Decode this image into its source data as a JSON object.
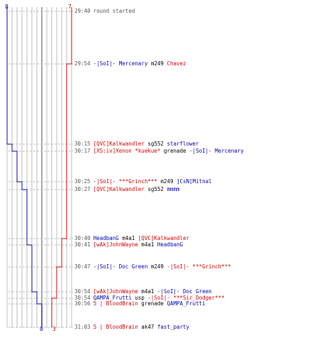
{
  "colors": {
    "blue": "#0000aa",
    "red": "#cc0000",
    "gray": "#555555",
    "grid": "#bbbbbb",
    "dash": "#bbbbbb"
  },
  "axis": {
    "blue_start": "8",
    "red_start": "7",
    "blue_end": "0",
    "red_end": "3"
  },
  "events": [
    {
      "time": "29:40",
      "parts": [
        {
          "t": "round started",
          "c": "gray"
        }
      ]
    },
    {
      "time": "29:54",
      "parts": [
        {
          "t": "-|SoI|- Mercenary",
          "c": "blue"
        },
        {
          "t": " m249 ",
          "c": "black"
        },
        {
          "t": "Chavez",
          "c": "red"
        }
      ]
    },
    {
      "time": "30:15",
      "parts": [
        {
          "t": "[QVC]Kalkwandler",
          "c": "red"
        },
        {
          "t": " sg552 ",
          "c": "black"
        },
        {
          "t": "starflower",
          "c": "blue"
        }
      ]
    },
    {
      "time": "30:17",
      "parts": [
        {
          "t": "[XS:iv]Xenon *kuekue*",
          "c": "red"
        },
        {
          "t": " grenade ",
          "c": "black"
        },
        {
          "t": "-|SoI|- Mercenary",
          "c": "blue"
        }
      ]
    },
    {
      "time": "30:25",
      "parts": [
        {
          "t": "-|SoI|- ***Grinch***",
          "c": "red"
        },
        {
          "t": " m249 ",
          "c": "black"
        },
        {
          "t": "]CsN[Mitnal",
          "c": "blue"
        }
      ]
    },
    {
      "time": "30:27",
      "parts": [
        {
          "t": "[QVC]Kalkwandler",
          "c": "red"
        },
        {
          "t": " sg552 ",
          "c": "black"
        },
        {
          "t": "mmmm",
          "c": "blue"
        }
      ]
    },
    {
      "time": "30:40",
      "parts": [
        {
          "t": "HeadbanG",
          "c": "blue"
        },
        {
          "t": " m4a1 ",
          "c": "black"
        },
        {
          "t": "[QVC]Kalkwandler",
          "c": "red"
        }
      ]
    },
    {
      "time": "30:41",
      "parts": [
        {
          "t": "[wAk]JohnWayne",
          "c": "red"
        },
        {
          "t": " m4a1 ",
          "c": "black"
        },
        {
          "t": "HeadbanG",
          "c": "blue"
        }
      ]
    },
    {
      "time": "30:47",
      "parts": [
        {
          "t": "-|SoI|- Doc Green",
          "c": "blue"
        },
        {
          "t": " m249 ",
          "c": "black"
        },
        {
          "t": "-|SoI|- ***Grinch***",
          "c": "red"
        }
      ]
    },
    {
      "time": "30:54",
      "parts": [
        {
          "t": "[wAk]JohnWayne",
          "c": "red"
        },
        {
          "t": " m4a1 ",
          "c": "black"
        },
        {
          "t": "-|SoI|- Doc Green",
          "c": "blue"
        }
      ]
    },
    {
      "time": "30:54",
      "parts": [
        {
          "t": "QAMPA_Frutti",
          "c": "blue"
        },
        {
          "t": " usp ",
          "c": "black"
        },
        {
          "t": "-|SoI|- ***Sir_Dodger***",
          "c": "red"
        }
      ]
    },
    {
      "time": "30:56",
      "parts": [
        {
          "t": "5 | BloodBrain",
          "c": "red"
        },
        {
          "t": " grenade ",
          "c": "black"
        },
        {
          "t": "QAMPA_Frutti",
          "c": "blue"
        }
      ]
    },
    {
      "time": "31:03",
      "parts": [
        {
          "t": "5 | BloodBrain",
          "c": "red"
        },
        {
          "t": " ak47 ",
          "c": "black"
        },
        {
          "t": "fast_party",
          "c": "blue"
        }
      ]
    }
  ]
}
